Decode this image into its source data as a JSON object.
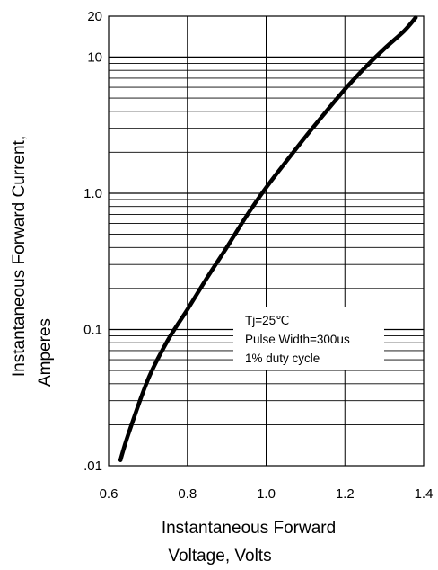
{
  "chart_data": {
    "type": "line",
    "x_scale": "linear",
    "y_scale": "log",
    "xlim": [
      0.6,
      1.4
    ],
    "ylim": [
      0.01,
      20
    ],
    "x_ticks": [
      0.6,
      0.8,
      1.0,
      1.2,
      1.4
    ],
    "x_tick_labels": [
      "0.6",
      "0.8",
      "1.0",
      "1.2",
      "1.4"
    ],
    "y_ticks": [
      0.01,
      0.1,
      1.0,
      10,
      20
    ],
    "y_tick_labels": [
      ".01",
      "0.1",
      "1.0",
      "10",
      "20"
    ],
    "grid": true,
    "xlabel": [
      "Instantaneous Forward",
      "Voltage, Volts"
    ],
    "ylabel": [
      "Instantaneous Forward Current,",
      "Amperes"
    ],
    "annotations": [
      "Tj=25℃",
      "Pulse Width=300us",
      "1% duty cycle"
    ],
    "series": [
      {
        "x": [
          0.63,
          0.65,
          0.7,
          0.75,
          0.8,
          0.85,
          0.9,
          0.95,
          1.0,
          1.05,
          1.1,
          1.15,
          1.2,
          1.25,
          1.3,
          1.35,
          1.38
        ],
        "y": [
          0.011,
          0.017,
          0.043,
          0.083,
          0.14,
          0.24,
          0.4,
          0.68,
          1.1,
          1.7,
          2.6,
          3.9,
          5.8,
          8.3,
          11.5,
          15.5,
          19.5
        ]
      }
    ]
  }
}
